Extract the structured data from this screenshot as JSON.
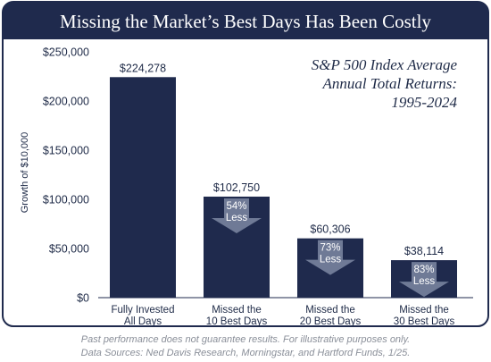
{
  "colors": {
    "navy": "#1f2a4d",
    "frame": "#1f2a4d",
    "arrow": "#6f7a96",
    "text": "#1e2a47",
    "footnote": "#8a8f99"
  },
  "chart_data": {
    "type": "bar",
    "title": "Missing the Market’s Best Days Has Been Costly",
    "ylabel": "Growth of $10,000",
    "xlabel": "",
    "ylim": [
      0,
      250000
    ],
    "yticks": [
      0,
      50000,
      100000,
      150000,
      200000,
      250000
    ],
    "ytick_labels": [
      "$0",
      "$50,000",
      "$100,000",
      "$150,000",
      "$200,000",
      "$250,000"
    ],
    "grid": false,
    "categories": [
      [
        "Fully Invested",
        "All Days"
      ],
      [
        "Missed the",
        "10 Best Days"
      ],
      [
        "Missed the",
        "20 Best Days"
      ],
      [
        "Missed the",
        "30 Best Days"
      ]
    ],
    "values": [
      224278,
      102750,
      60306,
      38114
    ],
    "value_labels": [
      "$224,278",
      "$102,750",
      "$60,306",
      "$38,114"
    ],
    "reductions": [
      null,
      [
        "54%",
        "Less"
      ],
      [
        "73%",
        "Less"
      ],
      [
        "83%",
        "Less"
      ]
    ],
    "annotation": [
      "S&P 500 Index Average",
      "Annual Total Returns:",
      "1995-2024"
    ]
  },
  "footnote": [
    "Past performance does not guarantee results. For illustrative purposes only.",
    "Data Sources: Ned Davis Research, Morningstar, and Hartford Funds, 1/25."
  ]
}
